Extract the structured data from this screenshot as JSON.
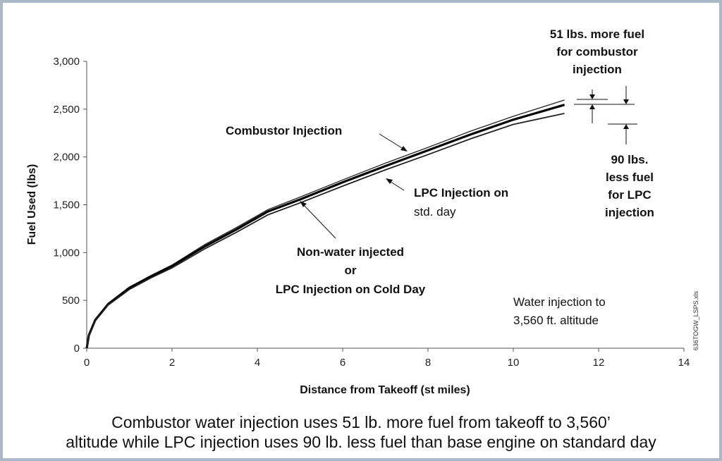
{
  "chart_data": {
    "type": "line",
    "xlabel": "Distance from Takeoff (st miles)",
    "ylabel": "Fuel Used (lbs)",
    "xlim": [
      0,
      14
    ],
    "ylim": [
      0,
      3000
    ],
    "x_ticks": [
      "0",
      "2",
      "4",
      "6",
      "8",
      "10",
      "12",
      "14"
    ],
    "y_ticks": [
      "0",
      "500",
      "1,000",
      "1,500",
      "2,000",
      "2,500",
      "3,000"
    ],
    "grid": false,
    "series": [
      {
        "name": "Combustor Injection",
        "x": [
          0,
          0.05,
          0.2,
          0.5,
          1,
          1.5,
          2,
          2.75,
          3.5,
          4.25,
          5,
          6,
          7,
          8,
          9,
          10,
          11.2
        ],
        "y": [
          0,
          140,
          300,
          470,
          640,
          760,
          870,
          1080,
          1260,
          1450,
          1580,
          1760,
          1935,
          2100,
          2270,
          2425,
          2595
        ]
      },
      {
        "name": "Non-water injected or LPC Injection on Cold Day",
        "x": [
          0,
          0.05,
          0.2,
          0.5,
          1,
          1.5,
          2,
          2.75,
          3.5,
          4.25,
          5,
          6,
          7,
          8,
          9,
          10,
          11.2
        ],
        "y": [
          0,
          135,
          295,
          460,
          630,
          750,
          860,
          1060,
          1240,
          1430,
          1555,
          1735,
          1905,
          2070,
          2235,
          2390,
          2545
        ]
      },
      {
        "name": "LPC Injection on std. day",
        "x": [
          0,
          0.05,
          0.2,
          0.5,
          1,
          1.5,
          2,
          2.75,
          3.5,
          4.25,
          5,
          6,
          7,
          8,
          9,
          10,
          11.2
        ],
        "y": [
          0,
          130,
          285,
          450,
          615,
          735,
          840,
          1035,
          1210,
          1395,
          1520,
          1695,
          1865,
          2025,
          2190,
          2340,
          2455
        ]
      }
    ],
    "annotations": {
      "combustor": "Combustor Injection",
      "lpc_line1": "LPC Injection on",
      "lpc_line2": "std. day",
      "nonwater_line1": "Non-water injected",
      "nonwater_line2": "or",
      "nonwater_line3": "LPC Injection on Cold Day",
      "more_line1": "51 lbs. more fuel",
      "more_line2": "for combustor",
      "more_line3": "injection",
      "less_line1": "90 lbs.",
      "less_line2": "less fuel",
      "less_line3": "for LPC",
      "less_line4": "injection",
      "water_line1": "Water injection to",
      "water_line2": "3,560 ft. altitude",
      "source_tag": "636TOGW_LSPS.xls"
    }
  },
  "caption": {
    "line1": "Combustor water injection uses 51 lb. more fuel from takeoff to 3,560’",
    "line2": "altitude while LPC injection uses 90 lb. less fuel than base engine on standard day"
  }
}
